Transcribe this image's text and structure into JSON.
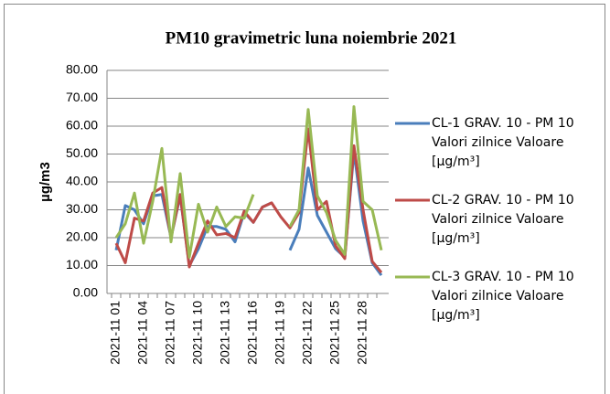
{
  "chart_data": {
    "type": "line",
    "title": "PM10 gravimetric luna noiembrie 2021",
    "y_label": "µg/m3",
    "categories": [
      "2021-11 01",
      null,
      null,
      "2021-11 04",
      null,
      null,
      "2021-11 07",
      null,
      null,
      "2021-11 10",
      null,
      null,
      "2021-11 13",
      null,
      null,
      "2021-11 16",
      null,
      null,
      "2021-11 19",
      null,
      null,
      "2021-11 22",
      null,
      null,
      "2021-11 25",
      null,
      null,
      "2021-11 28",
      null,
      null
    ],
    "series": [
      {
        "name": "CL-1 GRAV. 10 - PM 10 Valori zilnice Valoare [µg/m³]",
        "color": "#4a7ebb",
        "values": [
          15.5,
          31.5,
          30,
          25,
          35,
          35.5,
          20,
          35,
          10,
          16,
          24,
          24,
          23,
          18.5,
          29,
          25.5,
          31,
          32.5,
          null,
          15.5,
          23,
          45,
          28,
          22,
          16,
          13,
          51,
          26,
          11,
          6.5
        ]
      },
      {
        "name": "CL-2 GRAV. 10 - PM 10 Valori zilnice Valoare [µg/m³]",
        "color": "#be4b48",
        "values": [
          18,
          11,
          27,
          26,
          36,
          38,
          20,
          35.5,
          9.5,
          18,
          26,
          21,
          21.5,
          20,
          29.5,
          25.5,
          31,
          32.5,
          27.5,
          23.5,
          29,
          59,
          30,
          33,
          17,
          12.5,
          53,
          30,
          11.5,
          7.5
        ]
      },
      {
        "name": "CL-3 GRAV. 10 - PM 10 Valori zilnice Valoare [µg/m³]",
        "color": "#98b954",
        "values": [
          20,
          25,
          36,
          18,
          33,
          52,
          18.5,
          43,
          13,
          32,
          22,
          31,
          24,
          27.5,
          27,
          35.5,
          null,
          null,
          null,
          24,
          30,
          66,
          35,
          29,
          19,
          14,
          67,
          33,
          30,
          15.5
        ]
      }
    ],
    "ylim": [
      0,
      80
    ],
    "yticks": [
      {
        "value": 0,
        "label": "0.00"
      },
      {
        "value": 10,
        "label": "10.00"
      },
      {
        "value": 20,
        "label": "20.00"
      },
      {
        "value": 30,
        "label": "30.00"
      },
      {
        "value": 40,
        "label": "40.00"
      },
      {
        "value": 50,
        "label": "50.00"
      },
      {
        "value": 60,
        "label": "60.00"
      },
      {
        "value": 70,
        "label": "70.00"
      },
      {
        "value": 80,
        "label": "80.00"
      }
    ],
    "grid": true,
    "legend": "right"
  }
}
